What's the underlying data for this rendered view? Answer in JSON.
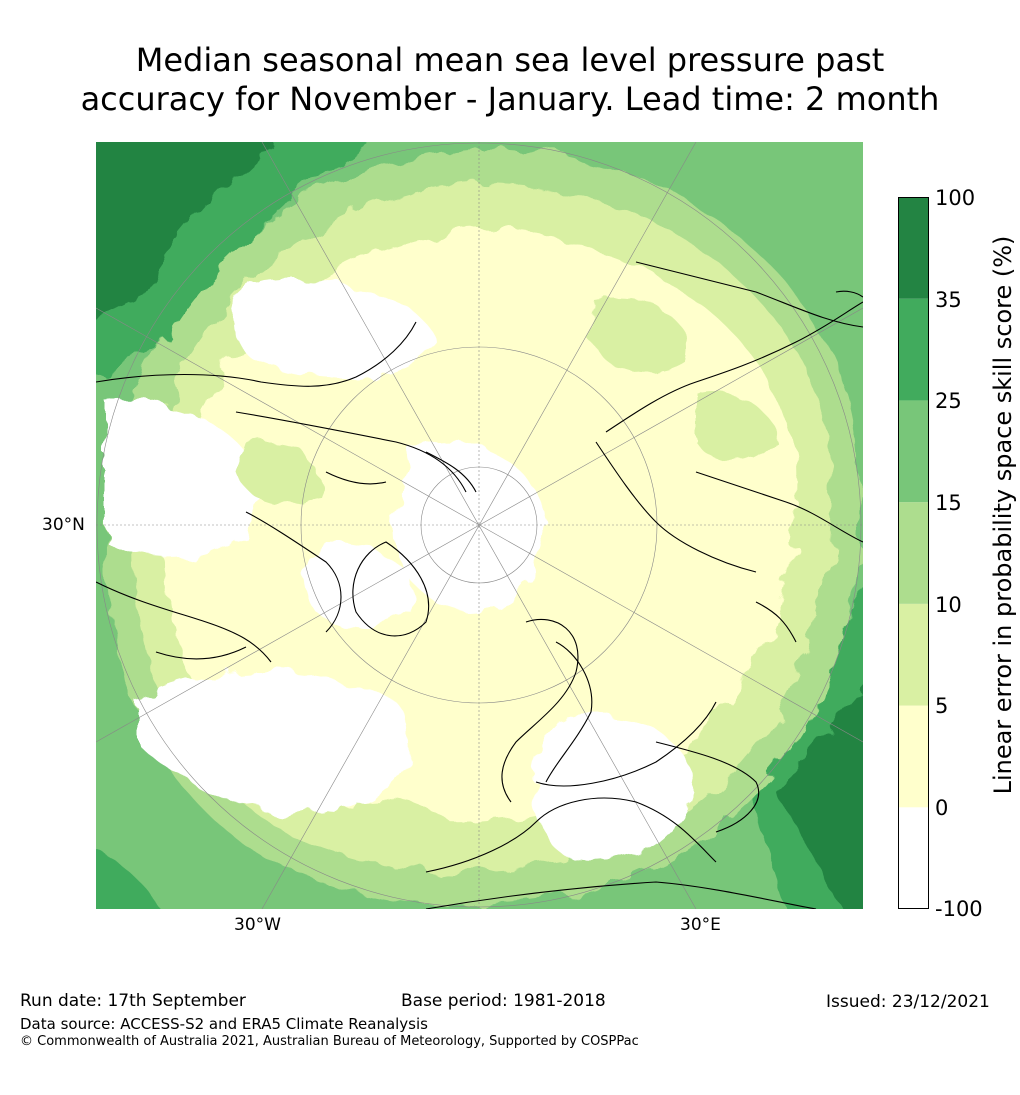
{
  "title": {
    "line1": "Median seasonal mean sea level pressure past",
    "line2": "accuracy for November - January. Lead time: 2 month"
  },
  "map": {
    "projection": "north-polar-stereographic",
    "lat_labels": [
      "30°N"
    ],
    "lon_labels": [
      "30°W",
      "30°E"
    ]
  },
  "colorbar": {
    "label": "Linear error in probability space skill score (%)",
    "ticks": [
      "100",
      "35",
      "25",
      "15",
      "10",
      "5",
      "0",
      "-100"
    ],
    "bins": [
      {
        "range": "-100 to 0",
        "color": "#ffffff"
      },
      {
        "range": "0 to 5",
        "color": "#ffffcc"
      },
      {
        "range": "5 to 10",
        "color": "#d9f0a3"
      },
      {
        "range": "10 to 15",
        "color": "#addd8e"
      },
      {
        "range": "15 to 25",
        "color": "#78c679"
      },
      {
        "range": "25 to 35",
        "color": "#41ab5d"
      },
      {
        "range": "35 to 100",
        "color": "#238443"
      }
    ]
  },
  "footer": {
    "run_date": "Run date: 17th September",
    "base_period": "Base period: 1981-2018",
    "issued": "Issued: 23/12/2021",
    "data_source": "Data source: ACCESS-S2 and ERA5 Climate Reanalysis",
    "copyright": "© Commonwealth of Australia 2021, Australian Bureau of Meteorology, Supported by COSPPac"
  }
}
